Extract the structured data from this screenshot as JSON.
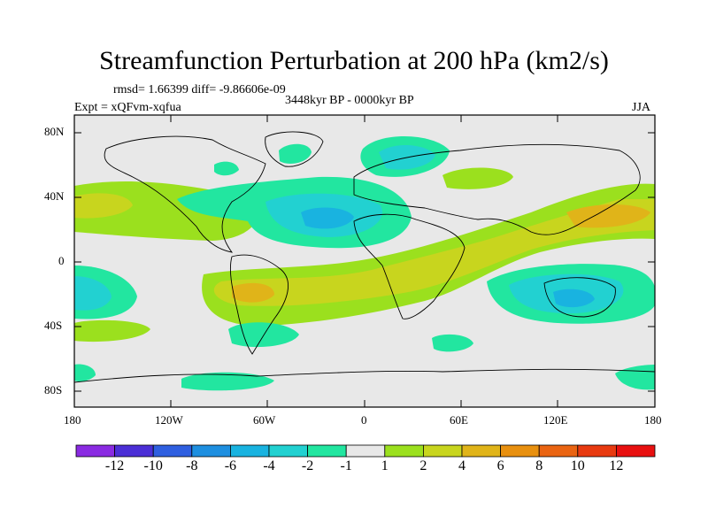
{
  "title": "Streamfunction Perturbation at 200 hPa (km2/s)",
  "stats": "rmsd= 1.66399 diff= -9.86606e-09",
  "period": "3448kyr BP - 0000kyr BP",
  "experiment": "Expt = xQFvm-xqfua",
  "season": "JJA",
  "lat_ticks": [
    "80N",
    "40N",
    "0",
    "40S",
    "80S"
  ],
  "lon_ticks": [
    "180",
    "120W",
    "60W",
    "0",
    "60E",
    "120E",
    "180"
  ],
  "colorbar": {
    "labels": [
      "-12",
      "-10",
      "-8",
      "-6",
      "-4",
      "-2",
      "-1",
      "1",
      "2",
      "4",
      "6",
      "8",
      "10",
      "12"
    ],
    "colors": [
      "#8a2be2",
      "#4b2fd6",
      "#2f5fe0",
      "#1e8fe0",
      "#19b3e0",
      "#22d1d1",
      "#22e6a0",
      "#e8e8e8",
      "#9be01e",
      "#c8d51e",
      "#e0b419",
      "#e8900f",
      "#ea6412",
      "#e83a10",
      "#e81010"
    ]
  },
  "map_colors": {
    "neutral": "#e8e8e8",
    "pos2": "#9be01e",
    "pos4": "#c8d51e",
    "pos6": "#e0b419",
    "neg2": "#22e6a0",
    "neg4": "#22d1d1",
    "neg6": "#19b3e0"
  }
}
